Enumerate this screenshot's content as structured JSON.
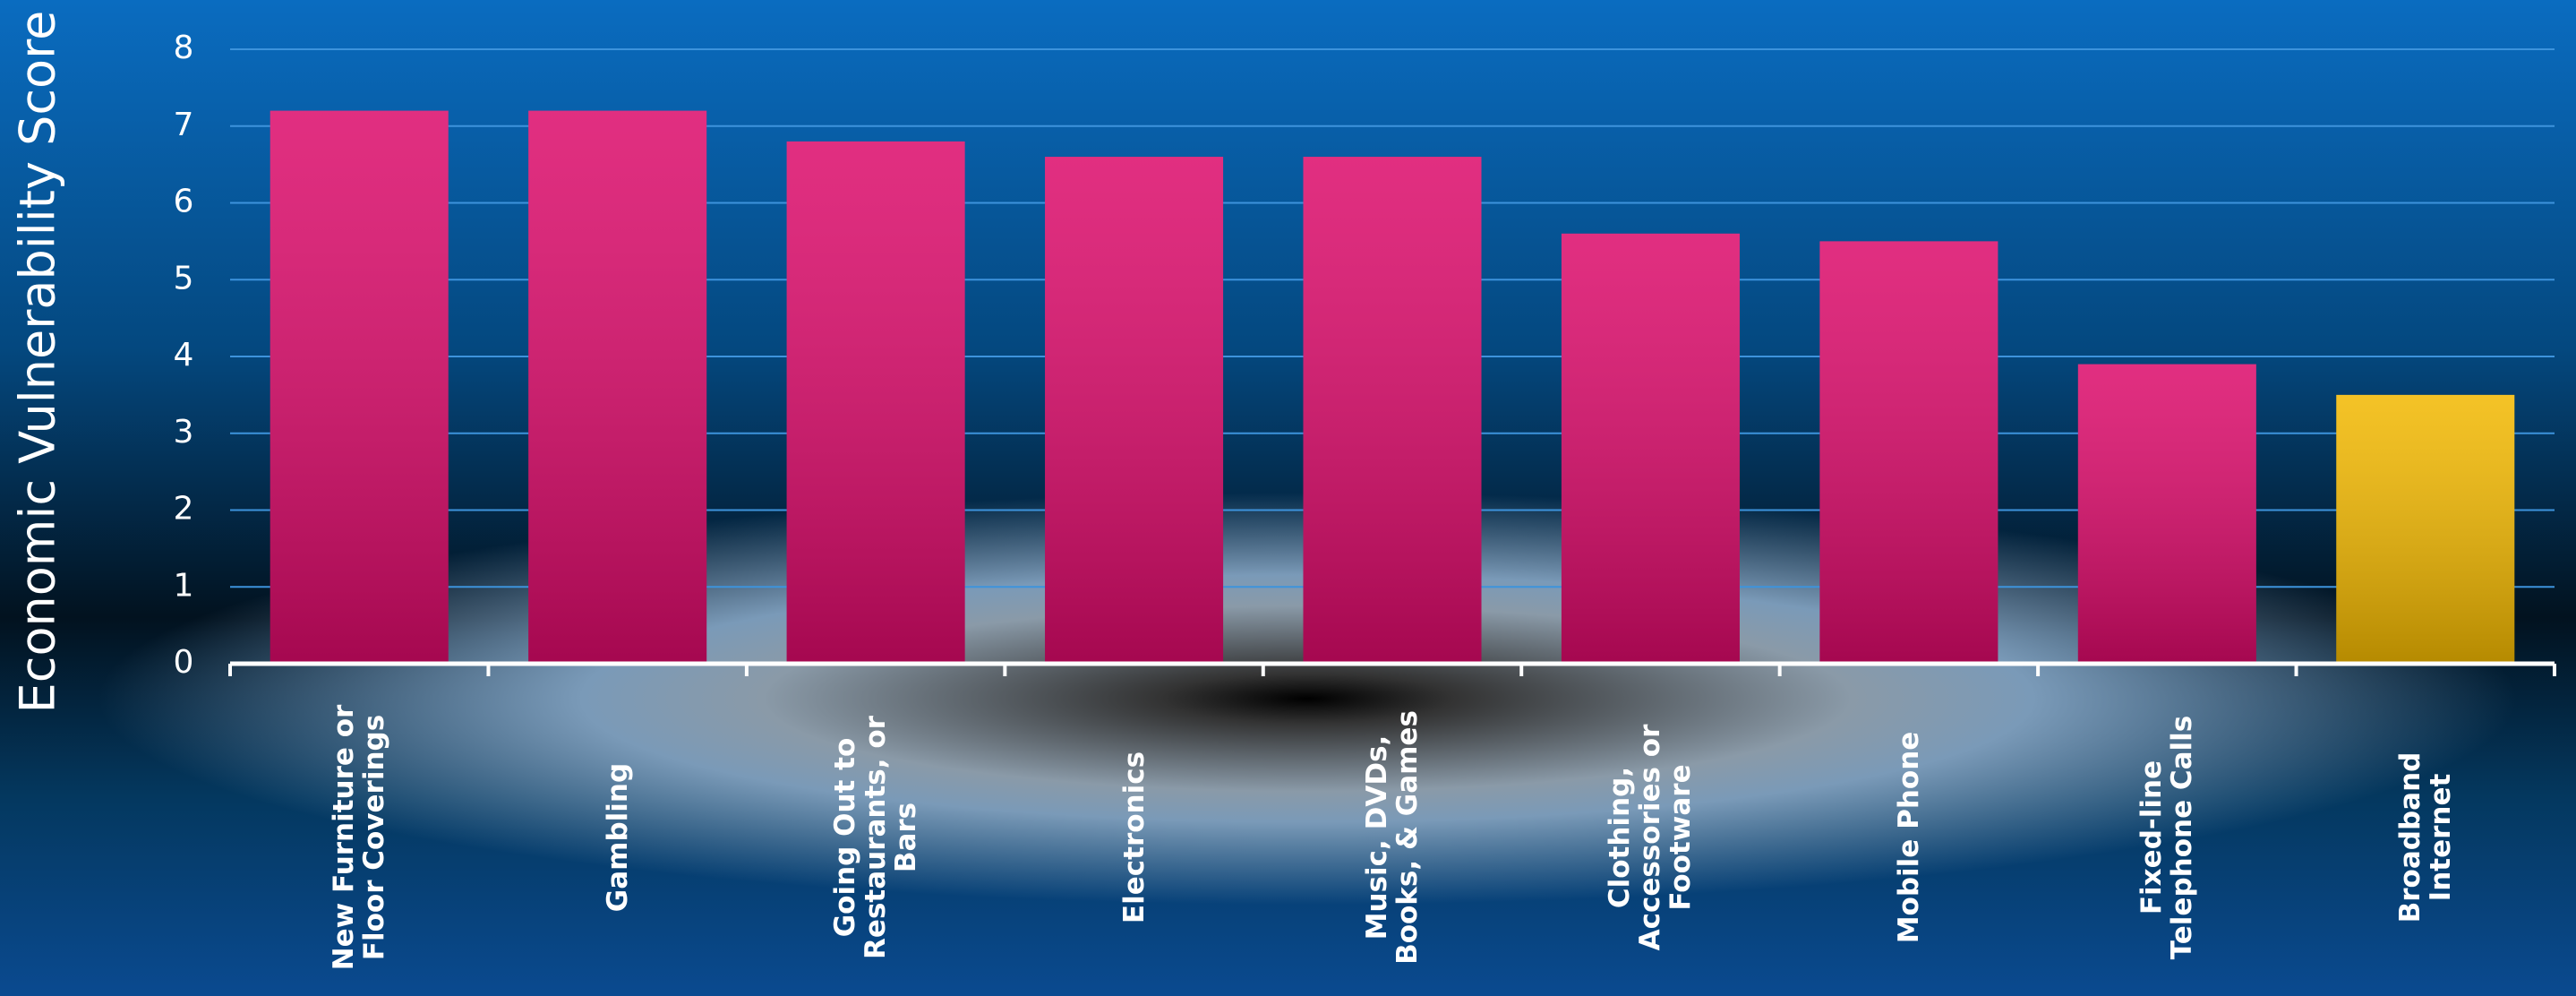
{
  "chart_data": {
    "type": "bar",
    "y_label": "Economic Vulnerability Score",
    "categories": [
      "New Furniture or Floor Coverings",
      "Gambling",
      "Going Out to Restaurants, or Bars",
      "Electronics",
      "Music, DVDs, Books, & Games",
      "Clothing, Accessories or Footware",
      "Mobile Phone",
      "Fixed-line Telephone Calls",
      "Broadband Internet"
    ],
    "values": [
      7.2,
      7.2,
      6.8,
      6.6,
      6.6,
      5.6,
      5.5,
      3.9,
      3.5
    ],
    "colors": [
      "#dc0a6a",
      "#dc0a6a",
      "#dc0a6a",
      "#dc0a6a",
      "#dc0a6a",
      "#dc0a6a",
      "#dc0a6a",
      "#dc0a6a",
      "#f2b800"
    ],
    "ylim": [
      0,
      8
    ],
    "yticks": [
      0,
      1,
      2,
      3,
      4,
      5,
      6,
      7,
      8
    ],
    "grid": true
  }
}
